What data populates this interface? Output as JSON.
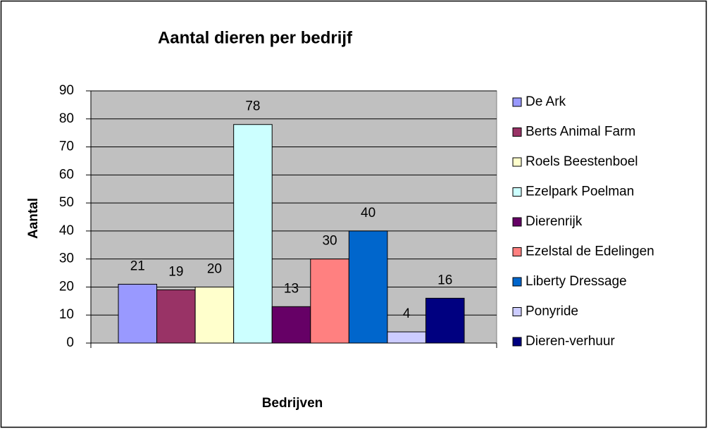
{
  "chart_data": {
    "type": "bar",
    "title": "Aantal dieren per bedrijf",
    "x_label": "Bedrijven",
    "y_label": "Aantal",
    "series": [
      {
        "name": "De Ark",
        "color": "#9999ff",
        "values": [
          21
        ]
      },
      {
        "name": "Berts Animal Farm",
        "color": "#993366",
        "values": [
          19
        ]
      },
      {
        "name": "Roels Beestenboel",
        "color": "#ffffcc",
        "values": [
          20
        ]
      },
      {
        "name": "Ezelpark Poelman",
        "color": "#ccffff",
        "values": [
          78
        ]
      },
      {
        "name": "Dierenrijk",
        "color": "#660066",
        "values": [
          13
        ]
      },
      {
        "name": "Ezelstal de Edelingen",
        "color": "#ff8080",
        "values": [
          30
        ]
      },
      {
        "name": "Liberty Dressage",
        "color": "#0066cc",
        "values": [
          40
        ]
      },
      {
        "name": "Ponyride",
        "color": "#ccccff",
        "values": [
          4
        ]
      },
      {
        "name": "Dieren-verhuur",
        "color": "#000080",
        "values": [
          16
        ]
      }
    ],
    "ylim": [
      0,
      90
    ],
    "yticks": [
      0,
      10,
      20,
      30,
      40,
      50,
      60,
      70,
      80,
      90
    ],
    "grid": true,
    "legend": "right",
    "plot_background": "#c0c0c0"
  }
}
